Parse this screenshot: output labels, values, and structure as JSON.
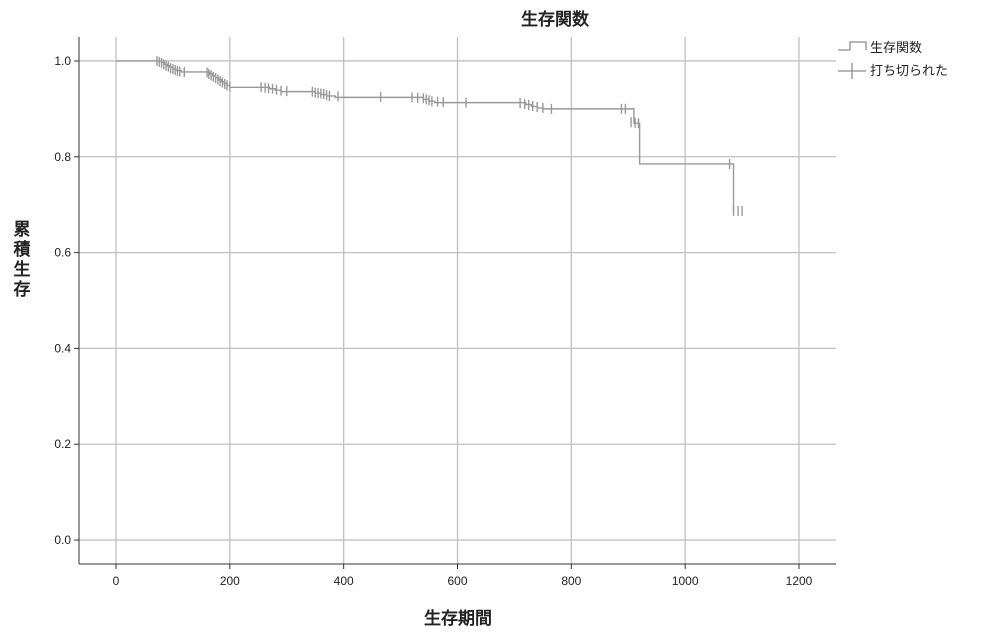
{
  "chart_data": {
    "type": "line",
    "subtype": "kaplan-meier",
    "title": "生存関数",
    "xlabel": "生存期間",
    "ylabel": "累積生存",
    "xlim": [
      -65,
      1265
    ],
    "ylim": [
      -0.05,
      1.05
    ],
    "xticks": [
      "0",
      "200",
      "400",
      "600",
      "800",
      "1000",
      "1200"
    ],
    "yticks": [
      "0.0",
      "0.2",
      "0.4",
      "0.6",
      "0.8",
      "1.0"
    ],
    "grid": true,
    "legend": {
      "position": "top-right",
      "entries": [
        "生存関数",
        "打ち切られた"
      ]
    },
    "colors": {
      "survival_line": "#999999",
      "censor_mark": "#999999",
      "grid": "#c0c0c0"
    },
    "series": [
      {
        "name": "生存関数",
        "x": [
          0,
          75,
          80,
          85,
          90,
          95,
          100,
          105,
          115,
          160,
          165,
          170,
          175,
          180,
          185,
          190,
          195,
          200,
          260,
          270,
          280,
          290,
          345,
          350,
          360,
          370,
          385,
          510,
          540,
          550,
          560,
          715,
          720,
          730,
          740,
          750,
          900,
          910,
          920,
          1075,
          1085
        ],
        "y": [
          1.0,
          1.0,
          0.997,
          0.993,
          0.99,
          0.987,
          0.983,
          0.98,
          0.977,
          0.977,
          0.973,
          0.969,
          0.965,
          0.961,
          0.957,
          0.953,
          0.949,
          0.945,
          0.945,
          0.942,
          0.939,
          0.936,
          0.936,
          0.933,
          0.93,
          0.927,
          0.924,
          0.924,
          0.92,
          0.916,
          0.913,
          0.913,
          0.909,
          0.905,
          0.902,
          0.9,
          0.9,
          0.87,
          0.785,
          0.785,
          0.687
        ]
      },
      {
        "name": "打ち切られた",
        "x": [
          72,
          76,
          80,
          84,
          88,
          92,
          96,
          100,
          104,
          108,
          112,
          120,
          160,
          163,
          167,
          171,
          175,
          179,
          183,
          187,
          191,
          195,
          200,
          255,
          262,
          268,
          275,
          282,
          290,
          300,
          345,
          350,
          355,
          360,
          365,
          370,
          375,
          390,
          465,
          520,
          530,
          540,
          545,
          550,
          555,
          565,
          575,
          615,
          710,
          718,
          725,
          732,
          740,
          750,
          765,
          888,
          895,
          905,
          912,
          918,
          1078,
          1085,
          1093,
          1100
        ],
        "y": [
          1.0,
          0.998,
          0.996,
          0.993,
          0.99,
          0.988,
          0.985,
          0.983,
          0.981,
          0.979,
          0.978,
          0.977,
          0.976,
          0.973,
          0.97,
          0.967,
          0.964,
          0.961,
          0.958,
          0.955,
          0.952,
          0.949,
          0.947,
          0.945,
          0.944,
          0.943,
          0.942,
          0.94,
          0.938,
          0.937,
          0.936,
          0.934,
          0.933,
          0.932,
          0.931,
          0.929,
          0.927,
          0.926,
          0.925,
          0.924,
          0.923,
          0.922,
          0.92,
          0.918,
          0.916,
          0.915,
          0.914,
          0.913,
          0.912,
          0.91,
          0.908,
          0.906,
          0.904,
          0.902,
          0.9,
          0.9,
          0.9,
          0.872,
          0.871,
          0.87,
          0.785,
          0.687,
          0.687,
          0.687
        ]
      }
    ]
  }
}
